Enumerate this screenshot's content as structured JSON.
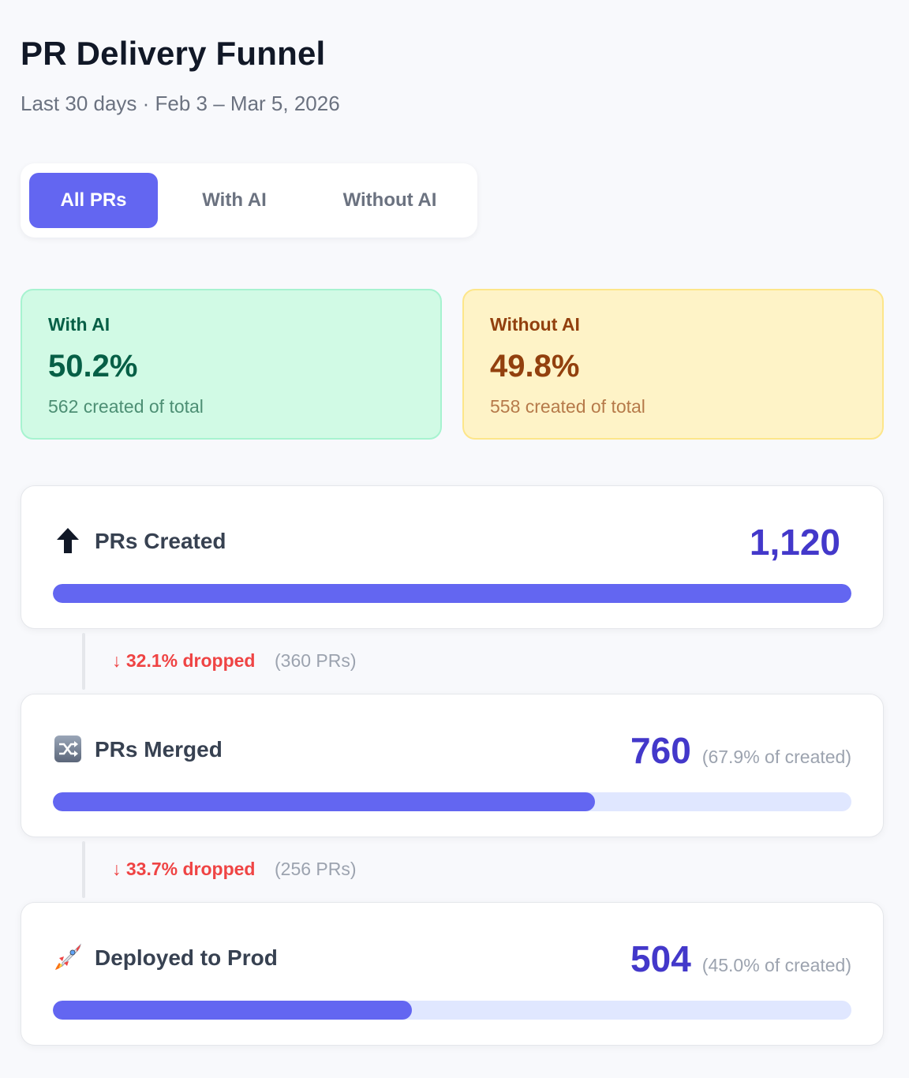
{
  "header": {
    "title": "PR Delivery Funnel",
    "subtitle": "Last 30 days · Feb 3 – Mar 5, 2026"
  },
  "filters": {
    "options": [
      "All PRs",
      "With AI",
      "Without AI"
    ],
    "selected": "All PRs"
  },
  "summary": {
    "with_ai": {
      "label": "With AI",
      "value": "50.2%",
      "sub": "562 created of total"
    },
    "without_ai": {
      "label": "Without AI",
      "value": "49.8%",
      "sub": "558 created of total"
    }
  },
  "funnel": {
    "stages": [
      {
        "label": "PRs Created",
        "icon": "up-arrow-icon",
        "count": "1,120",
        "pct_text": "",
        "fraction": 1.0
      },
      {
        "label": "PRs Merged",
        "icon": "shuffle-icon",
        "count": "760",
        "pct_text": "(67.9% of created)",
        "fraction": 0.679
      },
      {
        "label": "Deployed to Prod",
        "icon": "rocket-icon",
        "count": "504",
        "pct_text": "(45.0% of created)",
        "fraction": 0.45
      }
    ],
    "drops": [
      {
        "text": "↓ 32.1% dropped",
        "count": "(360 PRs)"
      },
      {
        "text": "↓ 33.7% dropped",
        "count": "(256 PRs)"
      }
    ]
  },
  "colors": {
    "accent": "#6366f1",
    "track": "#e0e7ff",
    "count": "#4338ca",
    "drop": "#ef4444",
    "ai_bg": "#d1fae5",
    "noai_bg": "#fef3c7"
  }
}
